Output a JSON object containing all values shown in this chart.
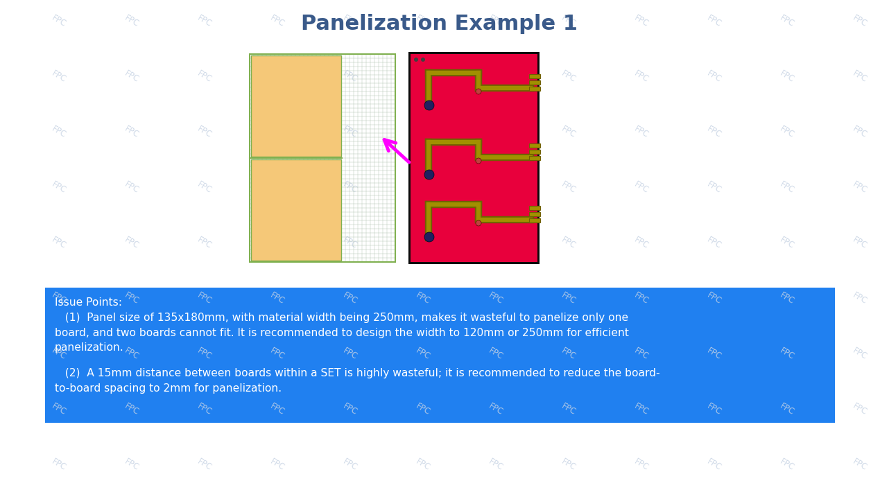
{
  "title": "Panelization Example 1",
  "title_color": "#3a5a8a",
  "title_fontsize": 22,
  "bg_color": "#ffffff",
  "watermark_color": "#c8d4e4",
  "issue_box_color": "#2080f0",
  "issue_text_color": "#ffffff",
  "issue_title": "Issue Points:",
  "issue_body1": "   (1)  Panel size of 135x180mm, with material width being 250mm, makes it wasteful to panelize only one\nboard, and two boards cannot fit. It is recommended to design the width to 120mm or 250mm for efficient\npanelization.",
  "issue_body2": "   (2)  A 15mm distance between boards within a SET is highly wasteful; it is recommended to reduce the board-\nto-board spacing to 2mm for panelization.",
  "arrow_color": "#ff00ff",
  "orange_color": "#f5c878",
  "grid_line_color": "#b0c0b0",
  "panel_border_color": "#80b050",
  "sep_line_color": "#80b050",
  "pcb_red": "#e8003c",
  "pcb_border": "#111111",
  "trace_color": "#a09000",
  "trace_dark": "#706000"
}
